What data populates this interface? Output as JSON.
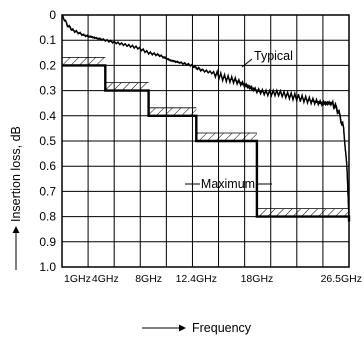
{
  "chart_data": {
    "type": "line",
    "xlabel": "Frequency",
    "ylabel": "Insertion loss, dB",
    "ylim": [
      0,
      1.0
    ],
    "y_inverted": true,
    "grid": true,
    "y_ticks": [
      "0",
      "0.1",
      "0.2",
      "0.3",
      "0.4",
      "0.5",
      "0.6",
      "0.7",
      "0.8",
      "0.9",
      "1.0"
    ],
    "x_ticks": [
      {
        "label": "1GHz",
        "value": 1
      },
      {
        "label": "4GHz",
        "value": 4
      },
      {
        "label": "8GHz",
        "value": 8
      },
      {
        "label": "12.4GHz",
        "value": 12.4
      },
      {
        "label": "18GHz",
        "value": 18
      },
      {
        "label": "26.5GHz",
        "value": 26.5
      }
    ],
    "xlim": [
      0,
      26.5
    ],
    "annotations": {
      "typical": "Typical",
      "maximum": "Maximum"
    },
    "series": [
      {
        "name": "Typical",
        "kind": "measured",
        "x": [
          0.0,
          0.5,
          1,
          2,
          3,
          4,
          5,
          6,
          7,
          8,
          9,
          10,
          11,
          12,
          12.4,
          13,
          14,
          15,
          16,
          17,
          18,
          19,
          20,
          21,
          22,
          23,
          24,
          25,
          25.5,
          26,
          26.3,
          26.5
        ],
        "y": [
          0.0,
          0.04,
          0.06,
          0.08,
          0.09,
          0.1,
          0.11,
          0.12,
          0.13,
          0.15,
          0.16,
          0.18,
          0.19,
          0.2,
          0.21,
          0.22,
          0.23,
          0.25,
          0.26,
          0.28,
          0.3,
          0.31,
          0.31,
          0.32,
          0.33,
          0.34,
          0.35,
          0.35,
          0.38,
          0.45,
          0.6,
          0.8
        ]
      },
      {
        "name": "Maximum",
        "kind": "step",
        "segments": [
          {
            "from": 0,
            "to": 4,
            "value": 0.2
          },
          {
            "from": 4,
            "to": 8,
            "value": 0.3
          },
          {
            "from": 8,
            "to": 12.4,
            "value": 0.4
          },
          {
            "from": 12.4,
            "to": 18,
            "value": 0.5
          },
          {
            "from": 18,
            "to": 26.5,
            "value": 0.8
          }
        ]
      }
    ]
  }
}
